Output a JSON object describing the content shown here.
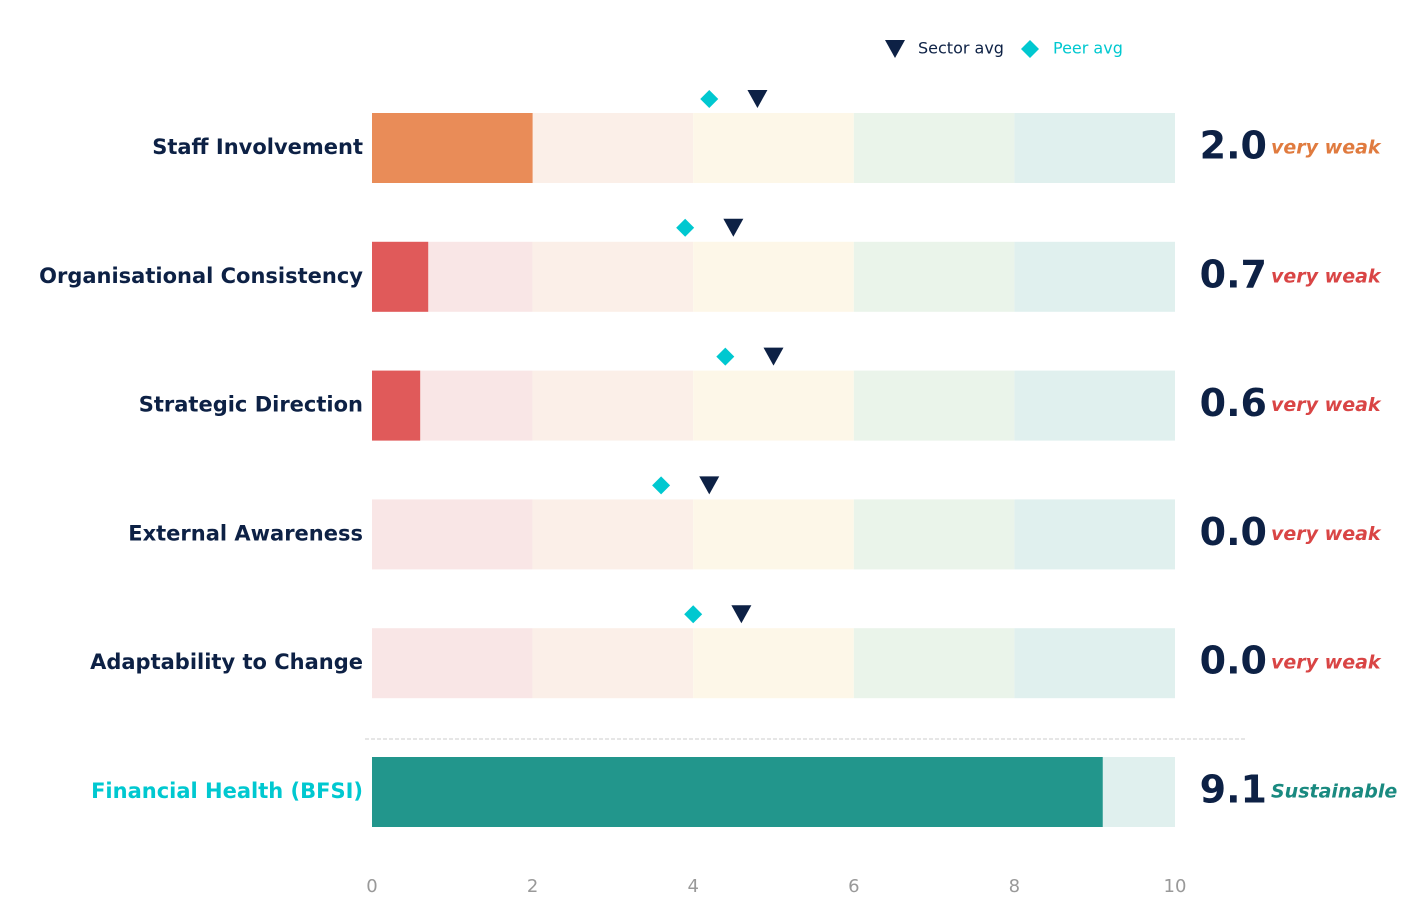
{
  "chart_data": {
    "type": "bullet",
    "categories": [
      "Staff Involvement",
      "Organisational Consistency",
      "Strategic Direction",
      "External Awareness",
      "Adaptability to Change",
      "Financial Health (BFSI)"
    ],
    "values": [
      2.0,
      0.7,
      0.6,
      0.0,
      0.0,
      9.1
    ],
    "value_labels": [
      "2.0",
      "0.7",
      "0.6",
      "0.0",
      "0.0",
      "9.1"
    ],
    "ratings": [
      "very weak",
      "very weak",
      "very weak",
      "very weak",
      "very weak",
      "Sustainable"
    ],
    "bar_colors": [
      "#e98c58",
      "#e05a5a",
      "#e05a5a",
      "#e05a5a",
      "#e05a5a",
      "#22968c"
    ],
    "rating_colors": [
      "#e07b3f",
      "#d94545",
      "#d94545",
      "#d94545",
      "#d94545",
      "#1a8a80"
    ],
    "label_colors": [
      "#0d2145",
      "#0d2145",
      "#0d2145",
      "#0d2145",
      "#0d2145",
      "#00c8d0"
    ],
    "bands": [
      0,
      2,
      4,
      6,
      8,
      10
    ],
    "band_colors": [
      "#f9e6e6",
      "#fbefe8",
      "#fdf7e8",
      "#eaf4ea",
      "#e0f0ee"
    ],
    "markers": [
      {
        "name": "Sector avg",
        "color": "#0d2145",
        "shape": "triangle",
        "values": [
          4.8,
          4.5,
          5.0,
          4.2,
          4.6,
          null
        ]
      },
      {
        "name": "Peer avg",
        "color": "#00c8d0",
        "shape": "diamond",
        "values": [
          4.2,
          3.9,
          4.4,
          3.6,
          4.0,
          null
        ]
      }
    ],
    "xlim": [
      0,
      10
    ],
    "xticks": [
      0,
      2,
      4,
      6,
      8,
      10
    ]
  }
}
